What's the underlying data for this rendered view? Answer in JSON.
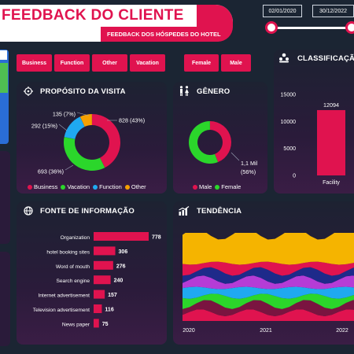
{
  "header": {
    "title": "FEEDBACK DO CLIENTE",
    "subtitle": "FEEDBACK DOS HÓSPEDES DO HOTEL",
    "date_start": "02/01/2020",
    "date_end": "30/12/2022"
  },
  "filters": {
    "purpose": [
      "Business",
      "Function",
      "Other",
      "Vacation"
    ],
    "gender": [
      "Female",
      "Male"
    ]
  },
  "colors": {
    "pink": "#e0134f",
    "green": "#2bd62b",
    "blue": "#1fa9f0",
    "orange": "#f5a000"
  },
  "cards": {
    "purpose_title": "PROPÓSITO DA VISITA",
    "gender_title": "GÊNERO",
    "rating_title": "CLASSIFICAÇÃ",
    "source_title": "FONTE DE INFORMAÇÃO",
    "trend_title": "TENDÊNCIA"
  },
  "icons": {
    "purpose": "crosshair-icon",
    "gender": "restroom-icon",
    "rating": "group-icon",
    "source": "globe-icon",
    "trend": "growth-icon"
  },
  "chart_data": [
    {
      "type": "pie",
      "title": "PROPÓSITO DA VISITA",
      "donut": true,
      "categories": [
        "Business",
        "Vacation",
        "Function",
        "Other"
      ],
      "values": [
        828,
        693,
        292,
        135
      ],
      "labels": [
        "828 (43%)",
        "693 (36%)",
        "292 (15%)",
        "135 (7%)"
      ],
      "colors": [
        "#e0134f",
        "#2bd62b",
        "#1fa9f0",
        "#f5a000"
      ],
      "legend": "bottom"
    },
    {
      "type": "pie",
      "title": "GÊNERO",
      "donut": true,
      "categories": [
        "Male",
        "Female"
      ],
      "values": [
        0.86,
        1.1
      ],
      "labels": [
        "",
        "1,1 Mil (56%)"
      ],
      "colors": [
        "#e0134f",
        "#2bd62b"
      ],
      "legend": "bottom"
    },
    {
      "type": "bar",
      "title": "CLASSIFICAÇÃ",
      "categories": [
        "Facility"
      ],
      "values": [
        12094
      ],
      "value_labels": [
        "12094"
      ],
      "y_ticks": [
        "15000",
        "10000",
        "5000",
        "0"
      ],
      "ylim": [
        0,
        15000
      ]
    },
    {
      "type": "bar",
      "orientation": "horizontal",
      "title": "FONTE DE INFORMAÇÃO",
      "categories": [
        "Organization",
        "hotel booking sites",
        "Word of mouth",
        "Search engine",
        "Internet advertisement",
        "Television advertisement",
        "News paper"
      ],
      "values": [
        778,
        306,
        276,
        240,
        157,
        116,
        75
      ],
      "value_labels": [
        "778",
        "306",
        "276",
        "240",
        "157",
        "116",
        "75"
      ]
    },
    {
      "type": "area",
      "title": "TENDÊNCIA",
      "x_ticks": [
        "2020",
        "2021",
        "2022"
      ]
    }
  ]
}
